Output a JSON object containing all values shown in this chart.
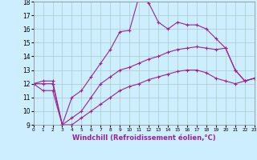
{
  "title": "",
  "xlabel": "Windchill (Refroidissement éolien,°C)",
  "ylabel": "",
  "bg_color": "#cceeff",
  "line_color": "#992299",
  "grid_color": "#aacccc",
  "hours": [
    0,
    1,
    2,
    3,
    4,
    5,
    6,
    7,
    8,
    9,
    10,
    11,
    12,
    13,
    14,
    15,
    16,
    17,
    18,
    19,
    20,
    21,
    22,
    23
  ],
  "line1": [
    12.0,
    12.2,
    12.2,
    9.0,
    11.0,
    11.5,
    12.5,
    13.5,
    14.5,
    15.8,
    15.9,
    18.4,
    17.9,
    16.5,
    16.0,
    16.5,
    16.3,
    16.3,
    16.0,
    15.3,
    14.6,
    13.0,
    12.2,
    12.4
  ],
  "line2": [
    12.0,
    12.0,
    12.0,
    9.0,
    9.5,
    10.0,
    11.0,
    12.0,
    12.5,
    13.0,
    13.2,
    13.5,
    13.8,
    14.0,
    14.3,
    14.5,
    14.6,
    14.7,
    14.6,
    14.5,
    14.6,
    13.0,
    12.2,
    12.4
  ],
  "line3": [
    12.0,
    11.5,
    11.5,
    9.0,
    9.0,
    9.5,
    10.0,
    10.5,
    11.0,
    11.5,
    11.8,
    12.0,
    12.3,
    12.5,
    12.7,
    12.9,
    13.0,
    13.0,
    12.8,
    12.4,
    12.2,
    12.0,
    12.2,
    12.4
  ],
  "ylim": [
    9,
    18
  ],
  "xlim": [
    0,
    23
  ],
  "yticks": [
    9,
    10,
    11,
    12,
    13,
    14,
    15,
    16,
    17,
    18
  ],
  "xticks": [
    0,
    1,
    2,
    3,
    4,
    5,
    6,
    7,
    8,
    9,
    10,
    11,
    12,
    13,
    14,
    15,
    16,
    17,
    18,
    19,
    20,
    21,
    22,
    23
  ]
}
